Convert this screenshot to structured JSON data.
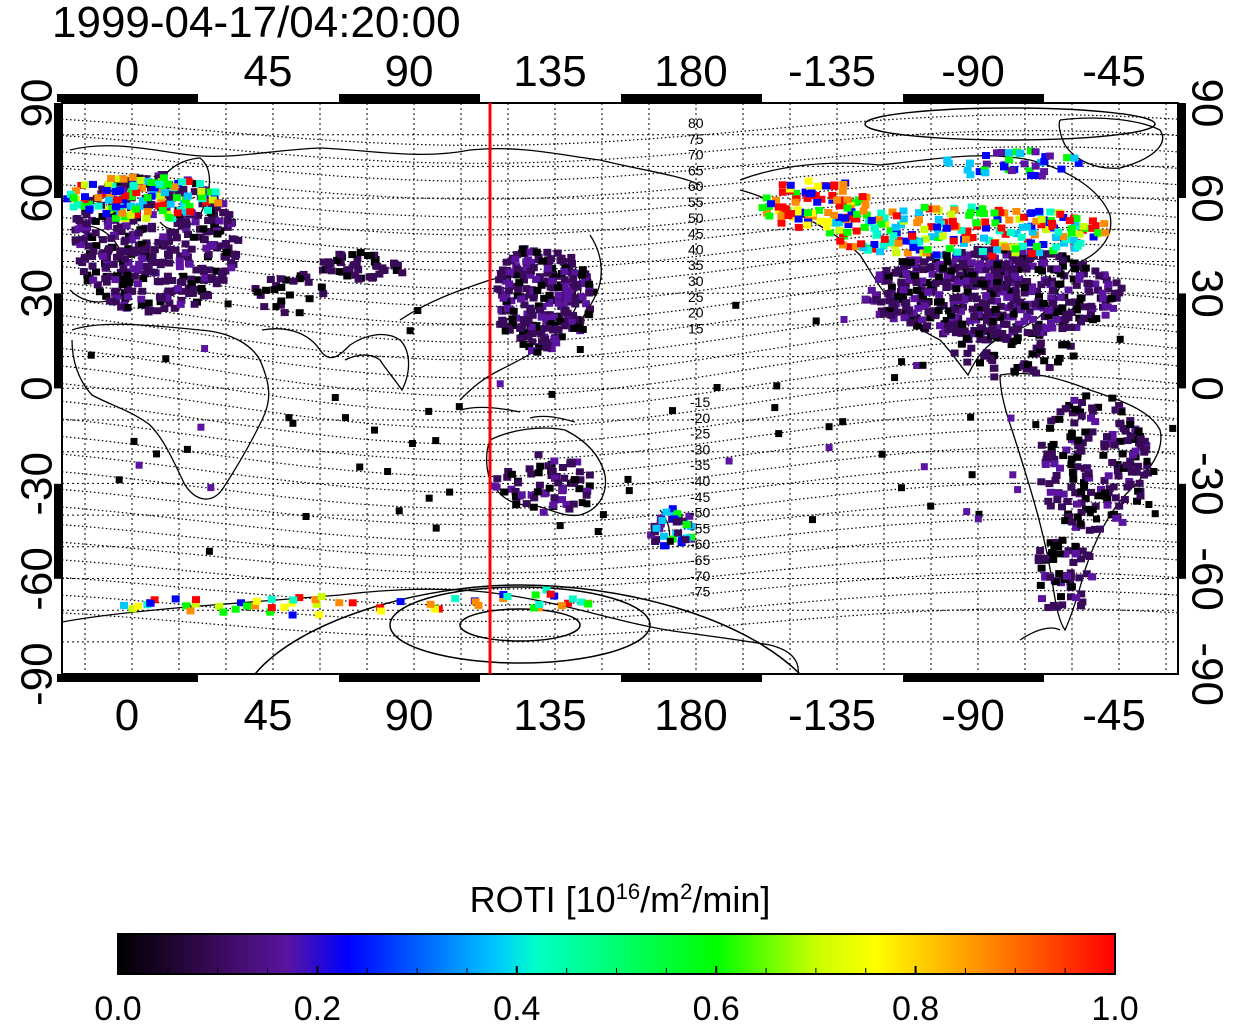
{
  "title": "1999-04-17/04:20:00",
  "map": {
    "top_lon_labels": [
      "0",
      "45",
      "90",
      "135",
      "180",
      "-135",
      "-90",
      "-45"
    ],
    "bottom_lon_labels": [
      "0",
      "45",
      "90",
      "135",
      "180",
      "-135",
      "-90",
      "-45"
    ],
    "left_lat_labels": [
      "90",
      "60",
      "30",
      "0",
      "-30",
      "-60",
      "-90"
    ],
    "right_lat_labels": [
      "90",
      "60",
      "30",
      "0",
      "-30",
      "-60",
      "-90"
    ],
    "north_contour_labels": [
      "80",
      "75",
      "70",
      "65",
      "60",
      "55",
      "50",
      "45",
      "40",
      "35",
      "30",
      "25",
      "20",
      "15"
    ],
    "south_contour_labels": [
      "-15",
      "-20",
      "-25",
      "-30",
      "-35",
      "-40",
      "-45",
      "-50",
      "-55",
      "-60",
      "-65",
      "-70",
      "-75"
    ],
    "marker_line_color": "#ff0000",
    "marker_longitude": 117
  },
  "colorbar": {
    "title_main": "ROTI  [10",
    "title_sup1": "16",
    "title_mid": "/m",
    "title_sup2": "2",
    "title_end": "/min]",
    "tick_labels": [
      "0.0",
      "0.2",
      "0.4",
      "0.6",
      "0.8",
      "1.0"
    ],
    "colors": [
      "#000000",
      "#3a0a5a",
      "#5a14a0",
      "#0000ff",
      "#00c8ff",
      "#00ffc8",
      "#00ff00",
      "#c8ff00",
      "#ffff00",
      "#ff8c00",
      "#ff0000"
    ]
  }
}
